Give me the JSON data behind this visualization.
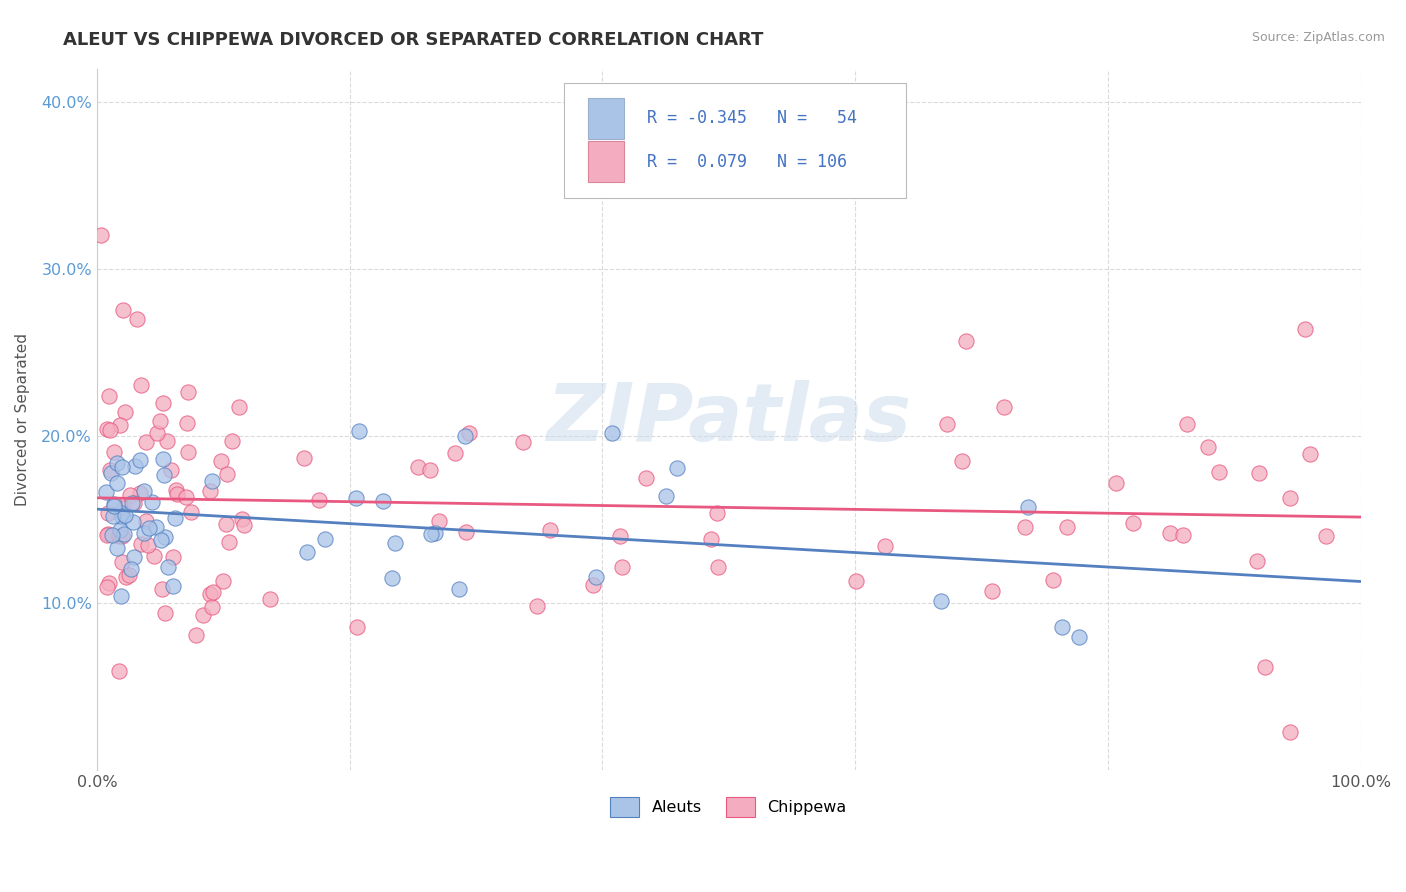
{
  "title": "ALEUT VS CHIPPEWA DIVORCED OR SEPARATED CORRELATION CHART",
  "source_text": "Source: ZipAtlas.com",
  "ylabel": "Divorced or Separated",
  "xlim": [
    0.0,
    1.0
  ],
  "ylim": [
    0.0,
    0.42
  ],
  "xticks": [
    0.0,
    0.2,
    0.4,
    0.6,
    0.8,
    1.0
  ],
  "xtick_labels": [
    "0.0%",
    "",
    "",
    "",
    "",
    "100.0%"
  ],
  "yticks": [
    0.0,
    0.1,
    0.2,
    0.3,
    0.4
  ],
  "ytick_labels": [
    "",
    "10.0%",
    "20.0%",
    "30.0%",
    "40.0%"
  ],
  "aleuts_color": "#aac4e8",
  "chippewa_color": "#f4adc0",
  "aleuts_line_color": "#5580c0",
  "chippewa_line_color": "#e85880",
  "aleuts_R": -0.345,
  "aleuts_N": 54,
  "chippewa_R": 0.079,
  "chippewa_N": 106,
  "watermark": "ZIPatlas",
  "background_color": "#ffffff",
  "grid_color": "#cccccc",
  "legend_label_aleuts": "Aleuts",
  "legend_label_chippewa": "Chippewa",
  "title_color": "#333333",
  "source_color": "#999999",
  "ylabel_color": "#555555",
  "ytick_color": "#5b9bd5",
  "xtick_color": "#555555"
}
